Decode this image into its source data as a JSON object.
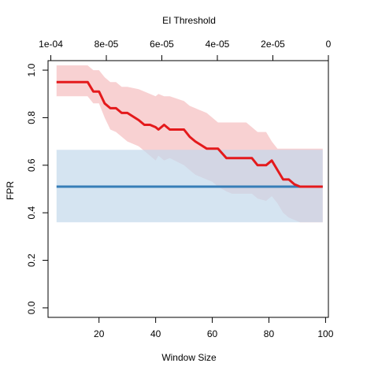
{
  "chart_data": {
    "type": "line",
    "top_axis_title": "EI Threshold",
    "xlabel": "Window Size",
    "ylabel": "FPR",
    "xlim": [
      2,
      101
    ],
    "ylim": [
      -0.04,
      1.04
    ],
    "top_xlim": [
      0.000101,
      0
    ],
    "grid": false,
    "x_ticks": [
      20,
      40,
      60,
      80,
      100
    ],
    "x_tick_labels": [
      "20",
      "40",
      "60",
      "80",
      "100"
    ],
    "y_ticks": [
      0,
      0.2,
      0.4,
      0.6,
      0.8,
      1.0
    ],
    "y_tick_labels": [
      "0.0",
      "0.2",
      "0.4",
      "0.6",
      "0.8",
      "1.0"
    ],
    "top_ticks": [
      0.0001,
      8e-05,
      6e-05,
      4e-05,
      2e-05,
      0
    ],
    "top_tick_labels": [
      "1e-04",
      "8e-05",
      "6e-05",
      "4e-05",
      "2e-05",
      "0"
    ],
    "colors": {
      "window_line": "#e41a1c",
      "window_band": "#f8cfd0",
      "threshold_line": "#377eb8",
      "threshold_band": "#c3d8eb",
      "xlabel": "#e41a1c",
      "top_title": "#377eb8"
    },
    "series": [
      {
        "x": [
          5,
          16,
          18,
          20,
          22,
          24,
          26,
          28,
          30,
          34,
          36,
          38,
          40,
          41,
          43,
          45,
          50,
          52,
          54,
          58,
          60,
          62,
          65,
          67,
          69,
          72,
          74,
          76,
          79,
          81,
          83,
          85,
          87,
          89,
          91,
          99
        ],
        "y": [
          0.95,
          0.95,
          0.91,
          0.91,
          0.86,
          0.84,
          0.84,
          0.82,
          0.82,
          0.79,
          0.77,
          0.77,
          0.76,
          0.75,
          0.77,
          0.75,
          0.75,
          0.72,
          0.7,
          0.67,
          0.67,
          0.67,
          0.63,
          0.63,
          0.63,
          0.63,
          0.63,
          0.6,
          0.6,
          0.62,
          0.58,
          0.54,
          0.54,
          0.52,
          0.51,
          0.51
        ],
        "upper": [
          1.02,
          1.02,
          1.0,
          1.0,
          0.97,
          0.95,
          0.95,
          0.93,
          0.93,
          0.92,
          0.91,
          0.9,
          0.89,
          0.9,
          0.89,
          0.89,
          0.87,
          0.85,
          0.84,
          0.82,
          0.8,
          0.78,
          0.78,
          0.78,
          0.78,
          0.78,
          0.76,
          0.74,
          0.74,
          0.7,
          0.67,
          0.67,
          0.67,
          0.67,
          0.67,
          0.67
        ],
        "lower": [
          0.89,
          0.89,
          0.86,
          0.86,
          0.8,
          0.75,
          0.74,
          0.72,
          0.7,
          0.68,
          0.66,
          0.64,
          0.62,
          0.64,
          0.62,
          0.63,
          0.6,
          0.58,
          0.56,
          0.54,
          0.53,
          0.51,
          0.49,
          0.48,
          0.48,
          0.48,
          0.48,
          0.46,
          0.45,
          0.47,
          0.44,
          0.4,
          0.38,
          0.37,
          0.36,
          0.36
        ]
      },
      {
        "x": [
          5,
          99
        ],
        "y": [
          0.51,
          0.51
        ],
        "upper": [
          0.665,
          0.665
        ],
        "lower": [
          0.36,
          0.36
        ]
      }
    ]
  }
}
